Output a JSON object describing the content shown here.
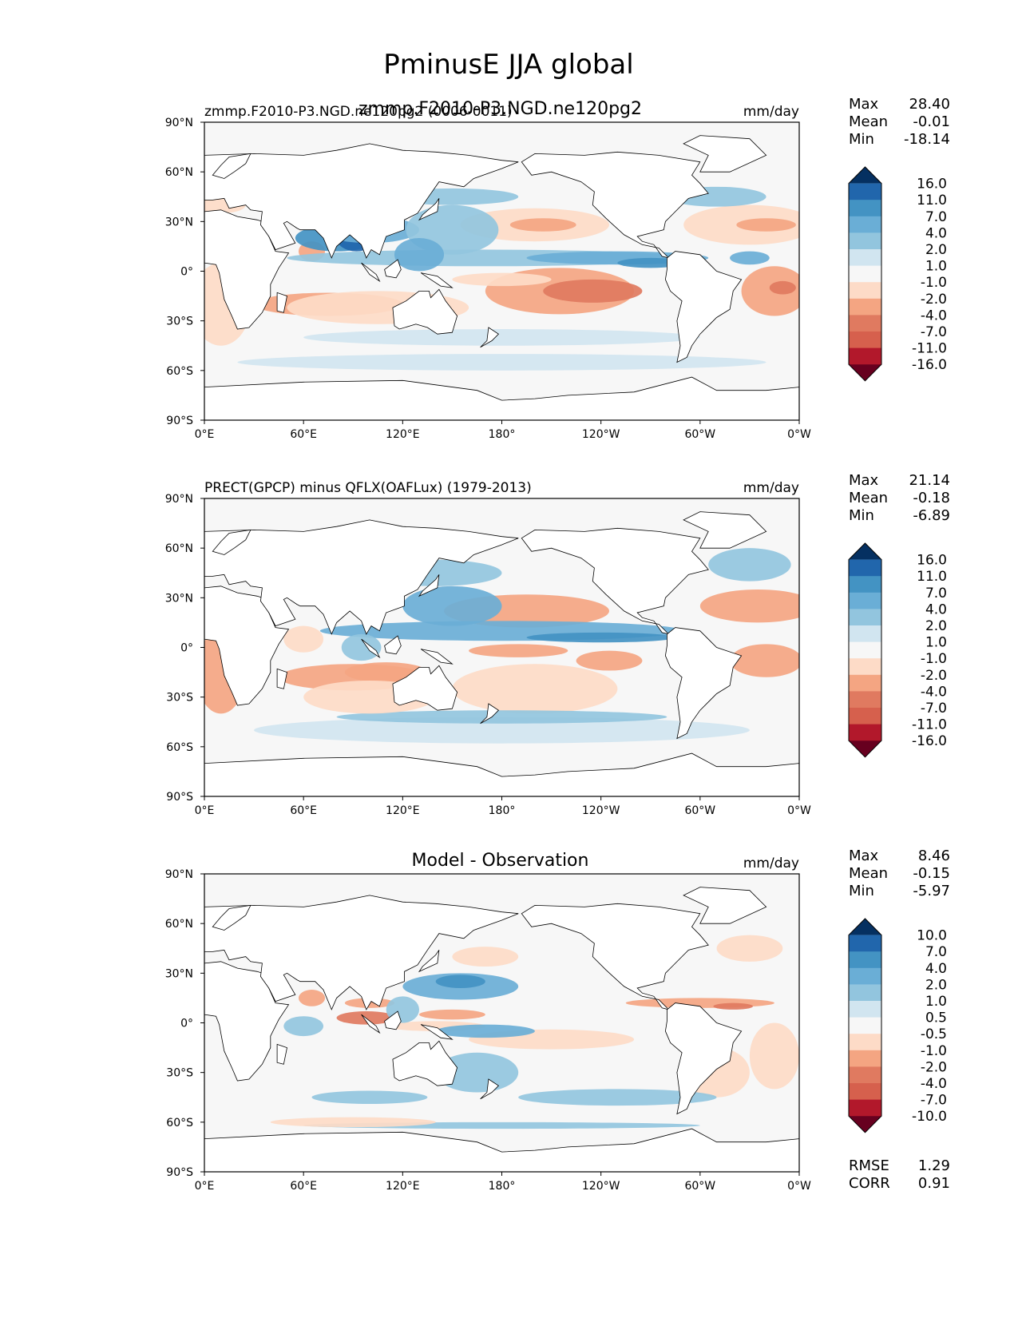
{
  "figure": {
    "title": "PminusE JJA global"
  },
  "chart_data": [
    {
      "type": "heatmap",
      "panel": "test",
      "title_left": "zmmp.F2010-P3.NGD.ne120pg2 (0006-0011)",
      "title_center": "zmmp.F2010-P3.NGD.ne120pg2",
      "units": "mm/day",
      "stats": [
        {
          "label": "Max",
          "value": "28.40"
        },
        {
          "label": "Mean",
          "value": "-0.01"
        },
        {
          "label": "Min",
          "value": "-18.14"
        }
      ],
      "colorbar_levels": [
        "16.0",
        "11.0",
        "7.0",
        "4.0",
        "2.0",
        "1.0",
        "-1.0",
        "-2.0",
        "-4.0",
        "-7.0",
        "-11.0",
        "-16.0"
      ],
      "colorbar_colors": [
        "#053061",
        "#2166ac",
        "#4393c3",
        "#6aaed6",
        "#92c5de",
        "#d1e5f0",
        "#f7f7f7",
        "#fddbc7",
        "#f4a582",
        "#e07a60",
        "#d6604d",
        "#b2182b",
        "#67001f"
      ],
      "x_ticks": [
        "0°E",
        "60°E",
        "120°E",
        "180°",
        "120°W",
        "60°W",
        "0°W"
      ],
      "y_ticks": [
        "90°N",
        "60°N",
        "30°N",
        "0°",
        "30°S",
        "60°S",
        "90°S"
      ],
      "xlim": [
        0,
        360
      ],
      "ylim": [
        -90,
        90
      ]
    },
    {
      "type": "heatmap",
      "panel": "reference",
      "title_left": "PRECT(GPCP) minus QFLX(OAFLux) (1979-2013)",
      "units": "mm/day",
      "stats": [
        {
          "label": "Max",
          "value": "21.14"
        },
        {
          "label": "Mean",
          "value": "-0.18"
        },
        {
          "label": "Min",
          "value": "-6.89"
        }
      ],
      "colorbar_levels": [
        "16.0",
        "11.0",
        "7.0",
        "4.0",
        "2.0",
        "1.0",
        "-1.0",
        "-2.0",
        "-4.0",
        "-7.0",
        "-11.0",
        "-16.0"
      ],
      "colorbar_colors": [
        "#053061",
        "#2166ac",
        "#4393c3",
        "#6aaed6",
        "#92c5de",
        "#d1e5f0",
        "#f7f7f7",
        "#fddbc7",
        "#f4a582",
        "#e07a60",
        "#d6604d",
        "#b2182b",
        "#67001f"
      ],
      "x_ticks": [
        "0°E",
        "60°E",
        "120°E",
        "180°",
        "120°W",
        "60°W",
        "0°W"
      ],
      "y_ticks": [
        "90°N",
        "60°N",
        "30°N",
        "0°",
        "30°S",
        "60°S",
        "90°S"
      ],
      "xlim": [
        0,
        360
      ],
      "ylim": [
        -90,
        90
      ]
    },
    {
      "type": "heatmap",
      "panel": "difference",
      "title_center": "Model - Observation",
      "units": "mm/day",
      "stats": [
        {
          "label": "Max",
          "value": "8.46"
        },
        {
          "label": "Mean",
          "value": "-0.15"
        },
        {
          "label": "Min",
          "value": "-5.97"
        }
      ],
      "metrics": [
        {
          "label": "RMSE",
          "value": "1.29"
        },
        {
          "label": "CORR",
          "value": "0.91"
        }
      ],
      "colorbar_levels": [
        "10.0",
        "7.0",
        "4.0",
        "2.0",
        "1.0",
        "0.5",
        "-0.5",
        "-1.0",
        "-2.0",
        "-4.0",
        "-7.0",
        "-10.0"
      ],
      "colorbar_colors": [
        "#053061",
        "#2166ac",
        "#4393c3",
        "#6aaed6",
        "#92c5de",
        "#d1e5f0",
        "#f7f7f7",
        "#fddbc7",
        "#f4a582",
        "#e07a60",
        "#d6604d",
        "#b2182b",
        "#67001f"
      ],
      "x_ticks": [
        "0°E",
        "60°E",
        "120°E",
        "180°",
        "120°W",
        "60°W",
        "0°W"
      ],
      "y_ticks": [
        "90°N",
        "60°N",
        "30°N",
        "0°",
        "30°S",
        "60°S",
        "90°S"
      ],
      "xlim": [
        0,
        360
      ],
      "ylim": [
        -90,
        90
      ]
    }
  ]
}
